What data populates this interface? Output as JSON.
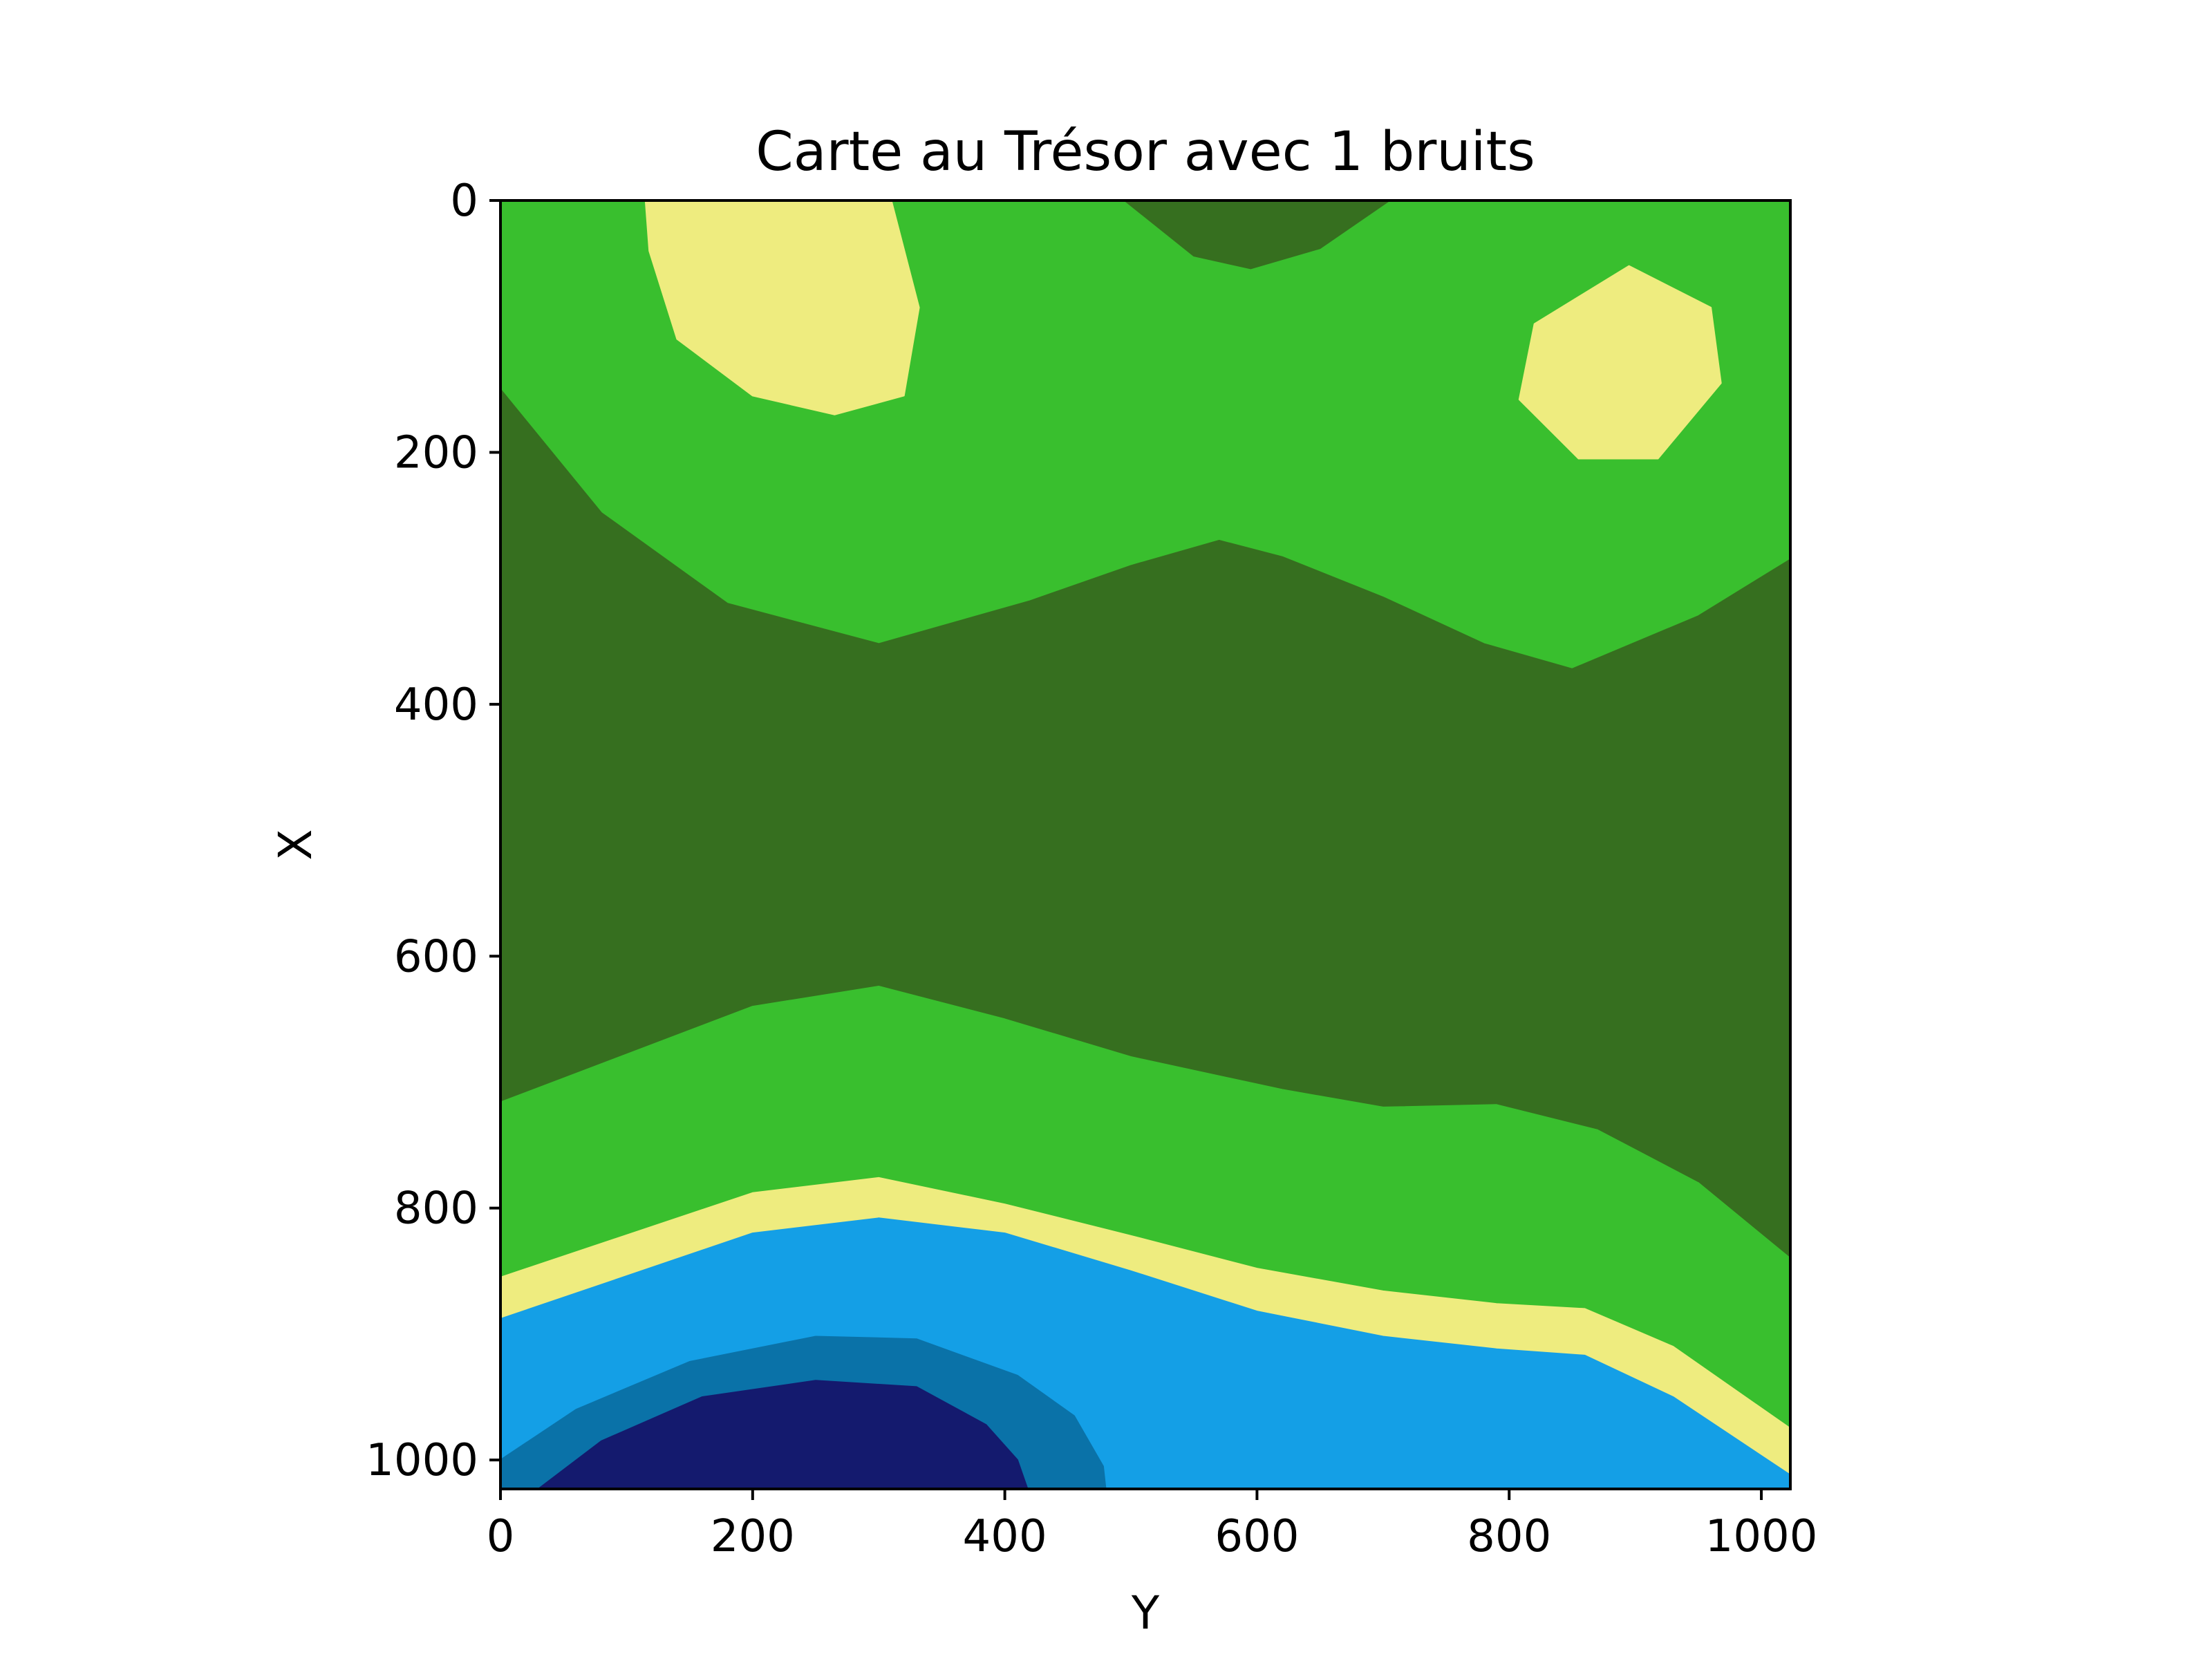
{
  "chart_data": {
    "type": "contour",
    "title": "Carte au Trésor avec 1 bruits",
    "xlabel": "Y",
    "ylabel": "X",
    "x_range": [
      0,
      1023
    ],
    "y_range": [
      1023,
      0
    ],
    "y_inverted": true,
    "x_ticks": [
      0,
      200,
      400,
      600,
      800,
      1000
    ],
    "y_ticks": [
      0,
      200,
      400,
      600,
      800,
      1000
    ],
    "grid": false,
    "colors": {
      "deep_water": "#141a6e",
      "water_mid": "#0a72a8",
      "water": "#149fe6",
      "sand": "#eeec7f",
      "grass": "#39bf2e",
      "forest": "#366f1f",
      "frame": "#000000"
    },
    "regions": [
      {
        "level": "grass",
        "points": [
          [
            0,
            0
          ],
          [
            1023,
            0
          ],
          [
            1023,
            285
          ],
          [
            950,
            330
          ],
          [
            850,
            372
          ],
          [
            780,
            352
          ],
          [
            700,
            315
          ],
          [
            620,
            283
          ],
          [
            570,
            270
          ],
          [
            500,
            290
          ],
          [
            420,
            318
          ],
          [
            300,
            352
          ],
          [
            180,
            320
          ],
          [
            80,
            248
          ],
          [
            0,
            150
          ]
        ]
      },
      {
        "level": "forest",
        "points": [
          [
            495,
            0
          ],
          [
            705,
            0
          ],
          [
            650,
            38
          ],
          [
            595,
            54
          ],
          [
            550,
            44
          ]
        ]
      },
      {
        "level": "sand",
        "points": [
          [
            115,
            0
          ],
          [
            310,
            0
          ],
          [
            332,
            85
          ],
          [
            320,
            155
          ],
          [
            265,
            170
          ],
          [
            200,
            155
          ],
          [
            140,
            110
          ],
          [
            118,
            40
          ]
        ]
      },
      {
        "level": "sand",
        "points": [
          [
            895,
            52
          ],
          [
            960,
            85
          ],
          [
            968,
            145
          ],
          [
            918,
            205
          ],
          [
            855,
            205
          ],
          [
            808,
            158
          ],
          [
            820,
            98
          ]
        ]
      },
      {
        "level": "forest",
        "points": [
          [
            0,
            150
          ],
          [
            80,
            248
          ],
          [
            180,
            320
          ],
          [
            300,
            352
          ],
          [
            420,
            318
          ],
          [
            500,
            290
          ],
          [
            570,
            270
          ],
          [
            620,
            283
          ],
          [
            700,
            315
          ],
          [
            780,
            352
          ],
          [
            850,
            372
          ],
          [
            950,
            330
          ],
          [
            1023,
            285
          ],
          [
            1023,
            840
          ],
          [
            950,
            780
          ],
          [
            870,
            738
          ],
          [
            790,
            718
          ],
          [
            700,
            720
          ],
          [
            620,
            706
          ],
          [
            500,
            680
          ],
          [
            400,
            650
          ],
          [
            300,
            624
          ],
          [
            200,
            640
          ],
          [
            0,
            716
          ]
        ]
      },
      {
        "level": "grass",
        "points": [
          [
            0,
            716
          ],
          [
            200,
            640
          ],
          [
            300,
            624
          ],
          [
            400,
            650
          ],
          [
            500,
            680
          ],
          [
            620,
            706
          ],
          [
            700,
            720
          ],
          [
            790,
            718
          ],
          [
            870,
            738
          ],
          [
            950,
            780
          ],
          [
            1023,
            840
          ],
          [
            1023,
            975
          ],
          [
            930,
            910
          ],
          [
            860,
            880
          ],
          [
            790,
            876
          ],
          [
            700,
            866
          ],
          [
            600,
            848
          ],
          [
            500,
            822
          ],
          [
            400,
            797
          ],
          [
            300,
            776
          ],
          [
            200,
            788
          ],
          [
            0,
            855
          ]
        ]
      },
      {
        "level": "sand",
        "points": [
          [
            0,
            855
          ],
          [
            200,
            788
          ],
          [
            300,
            776
          ],
          [
            400,
            797
          ],
          [
            500,
            822
          ],
          [
            600,
            848
          ],
          [
            700,
            866
          ],
          [
            790,
            876
          ],
          [
            860,
            880
          ],
          [
            930,
            910
          ],
          [
            1023,
            975
          ],
          [
            1023,
            1012
          ],
          [
            930,
            950
          ],
          [
            860,
            917
          ],
          [
            790,
            912
          ],
          [
            700,
            902
          ],
          [
            600,
            882
          ],
          [
            500,
            850
          ],
          [
            400,
            820
          ],
          [
            300,
            808
          ],
          [
            200,
            820
          ],
          [
            0,
            888
          ]
        ]
      },
      {
        "level": "water",
        "points": [
          [
            0,
            888
          ],
          [
            200,
            820
          ],
          [
            300,
            808
          ],
          [
            400,
            820
          ],
          [
            500,
            850
          ],
          [
            600,
            882
          ],
          [
            700,
            902
          ],
          [
            790,
            912
          ],
          [
            860,
            917
          ],
          [
            930,
            950
          ],
          [
            1023,
            1012
          ],
          [
            1023,
            1023
          ],
          [
            0,
            1023
          ]
        ]
      },
      {
        "level": "water_mid",
        "points": [
          [
            0,
            1000
          ],
          [
            60,
            960
          ],
          [
            150,
            922
          ],
          [
            250,
            902
          ],
          [
            330,
            904
          ],
          [
            410,
            933
          ],
          [
            455,
            965
          ],
          [
            478,
            1005
          ],
          [
            480,
            1023
          ],
          [
            0,
            1023
          ]
        ]
      },
      {
        "level": "deep_water",
        "points": [
          [
            30,
            1023
          ],
          [
            80,
            985
          ],
          [
            160,
            950
          ],
          [
            250,
            937
          ],
          [
            330,
            942
          ],
          [
            385,
            972
          ],
          [
            410,
            1000
          ],
          [
            418,
            1023
          ]
        ]
      }
    ]
  }
}
